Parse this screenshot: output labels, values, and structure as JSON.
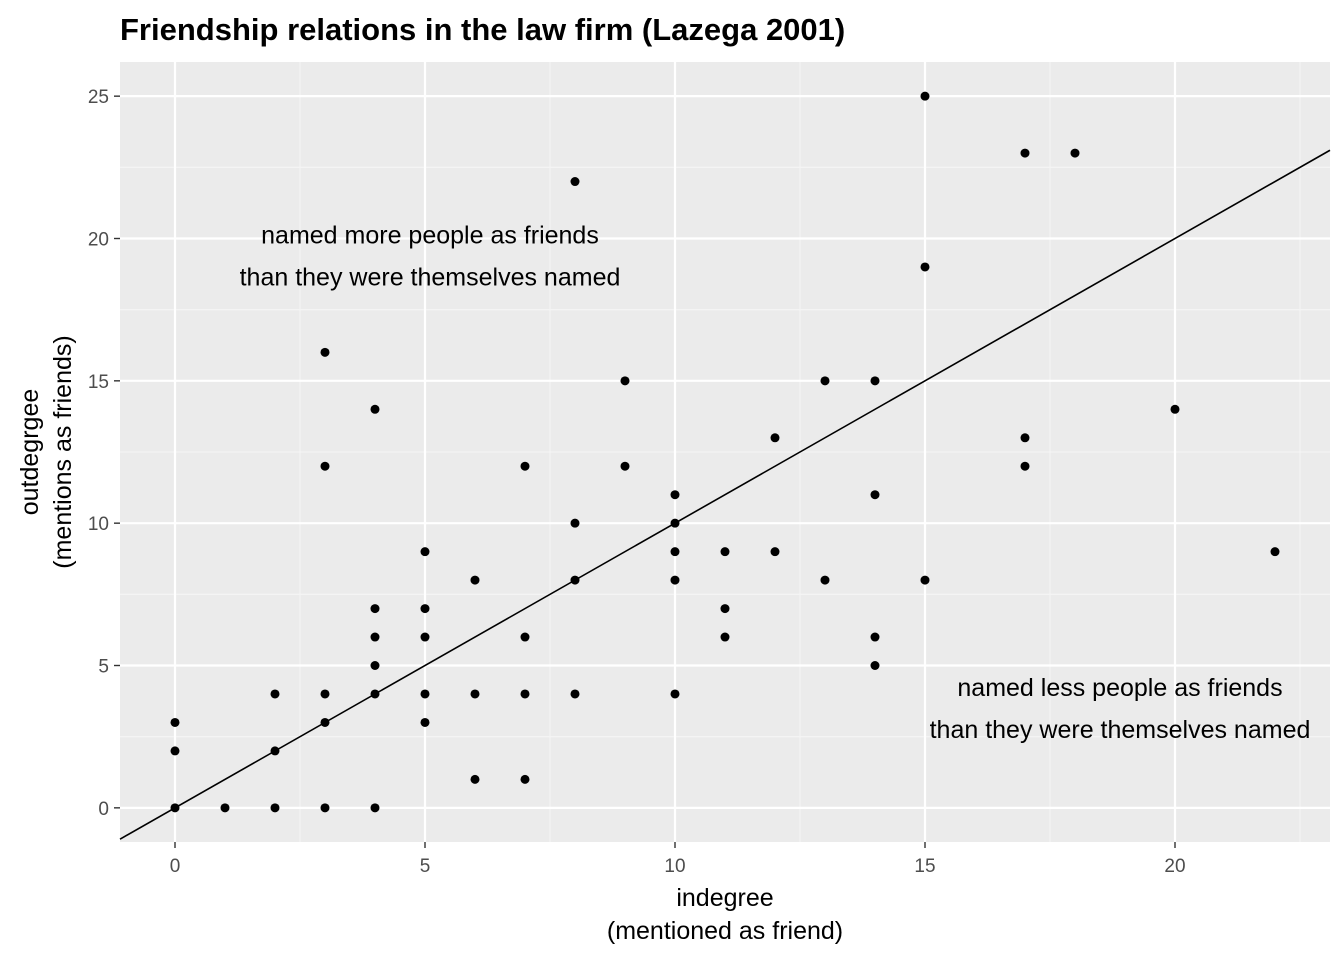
{
  "chart_data": {
    "type": "scatter",
    "title": "Friendship relations in the law firm (Lazega 2001)",
    "xlabel": [
      "indegree",
      "(mentioned as friend)"
    ],
    "ylabel": [
      "outdegrgee",
      "(mentions as friends)"
    ],
    "xlim": [
      -1.1,
      23.1
    ],
    "ylim": [
      -1.2,
      26.2
    ],
    "x_ticks": [
      0,
      5,
      10,
      15,
      20
    ],
    "y_ticks": [
      0,
      5,
      10,
      15,
      20,
      25
    ],
    "grid": true,
    "reference_line": {
      "slope": 1,
      "intercept": 0
    },
    "annotations": [
      {
        "lines": [
          "named more people as friends",
          "than they were themselves named"
        ],
        "x": 5.1,
        "y": 19.4
      },
      {
        "lines": [
          "named less people as friends",
          "than they were themselves named"
        ],
        "x": 18.9,
        "y": 3.5
      }
    ],
    "points": [
      [
        0,
        0
      ],
      [
        0,
        2
      ],
      [
        0,
        3
      ],
      [
        1,
        0
      ],
      [
        2,
        0
      ],
      [
        2,
        2
      ],
      [
        2,
        4
      ],
      [
        3,
        0
      ],
      [
        3,
        3
      ],
      [
        3,
        4
      ],
      [
        3,
        12
      ],
      [
        3,
        16
      ],
      [
        4,
        0
      ],
      [
        4,
        4
      ],
      [
        4,
        5
      ],
      [
        4,
        6
      ],
      [
        4,
        7
      ],
      [
        4,
        14
      ],
      [
        5,
        3
      ],
      [
        5,
        4
      ],
      [
        5,
        6
      ],
      [
        5,
        7
      ],
      [
        5,
        9
      ],
      [
        6,
        1
      ],
      [
        6,
        4
      ],
      [
        6,
        8
      ],
      [
        7,
        1
      ],
      [
        7,
        4
      ],
      [
        7,
        6
      ],
      [
        7,
        12
      ],
      [
        8,
        4
      ],
      [
        8,
        8
      ],
      [
        8,
        10
      ],
      [
        8,
        22
      ],
      [
        9,
        12
      ],
      [
        9,
        15
      ],
      [
        10,
        4
      ],
      [
        10,
        8
      ],
      [
        10,
        9
      ],
      [
        10,
        10
      ],
      [
        10,
        11
      ],
      [
        11,
        6
      ],
      [
        11,
        7
      ],
      [
        11,
        9
      ],
      [
        12,
        9
      ],
      [
        12,
        13
      ],
      [
        13,
        8
      ],
      [
        13,
        15
      ],
      [
        14,
        5
      ],
      [
        14,
        6
      ],
      [
        14,
        11
      ],
      [
        14,
        15
      ],
      [
        15,
        8
      ],
      [
        15,
        19
      ],
      [
        15,
        25
      ],
      [
        17,
        12
      ],
      [
        17,
        13
      ],
      [
        17,
        23
      ],
      [
        18,
        23
      ],
      [
        20,
        14
      ],
      [
        22,
        9
      ]
    ]
  },
  "colors": {
    "panel": "#ebebeb",
    "grid_major": "#ffffff",
    "grid_minor": "#f5f5f5",
    "point": "#000000",
    "line": "#000000",
    "tick": "#4d4d4d"
  }
}
